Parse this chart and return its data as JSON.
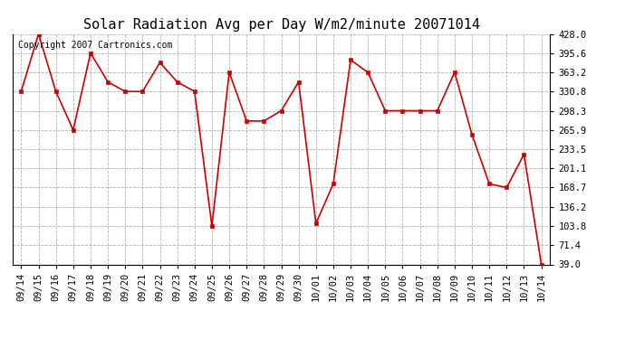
{
  "title": "Solar Radiation Avg per Day W/m2/minute 20071014",
  "copyright": "Copyright 2007 Cartronics.com",
  "labels": [
    "09/14",
    "09/15",
    "09/16",
    "09/17",
    "09/18",
    "09/19",
    "09/20",
    "09/21",
    "09/22",
    "09/23",
    "09/24",
    "09/25",
    "09/26",
    "09/27",
    "09/28",
    "09/29",
    "09/30",
    "10/01",
    "10/02",
    "10/03",
    "10/04",
    "10/05",
    "10/06",
    "10/07",
    "10/08",
    "10/09",
    "10/10",
    "10/11",
    "10/12",
    "10/13",
    "10/14"
  ],
  "values": [
    330.8,
    428.0,
    330.8,
    265.9,
    395.6,
    347.0,
    330.8,
    330.8,
    379.6,
    347.0,
    330.8,
    103.8,
    363.2,
    281.0,
    281.0,
    298.3,
    347.0,
    108.0,
    175.0,
    384.0,
    363.2,
    298.3,
    298.3,
    298.3,
    298.3,
    363.2,
    258.0,
    175.0,
    168.7,
    225.0,
    39.0
  ],
  "line_color": "#cc0000",
  "marker_color": "#cc0000",
  "bg_color": "#ffffff",
  "grid_color": "#b0b0b0",
  "ylim_min": 39.0,
  "ylim_max": 428.0,
  "ytick_values": [
    39.0,
    71.4,
    103.8,
    136.2,
    168.7,
    201.1,
    233.5,
    265.9,
    298.3,
    330.8,
    363.2,
    395.6,
    428.0
  ],
  "title_fontsize": 11,
  "copyright_fontsize": 7,
  "tick_fontsize": 7.5,
  "figwidth": 6.9,
  "figheight": 3.75
}
